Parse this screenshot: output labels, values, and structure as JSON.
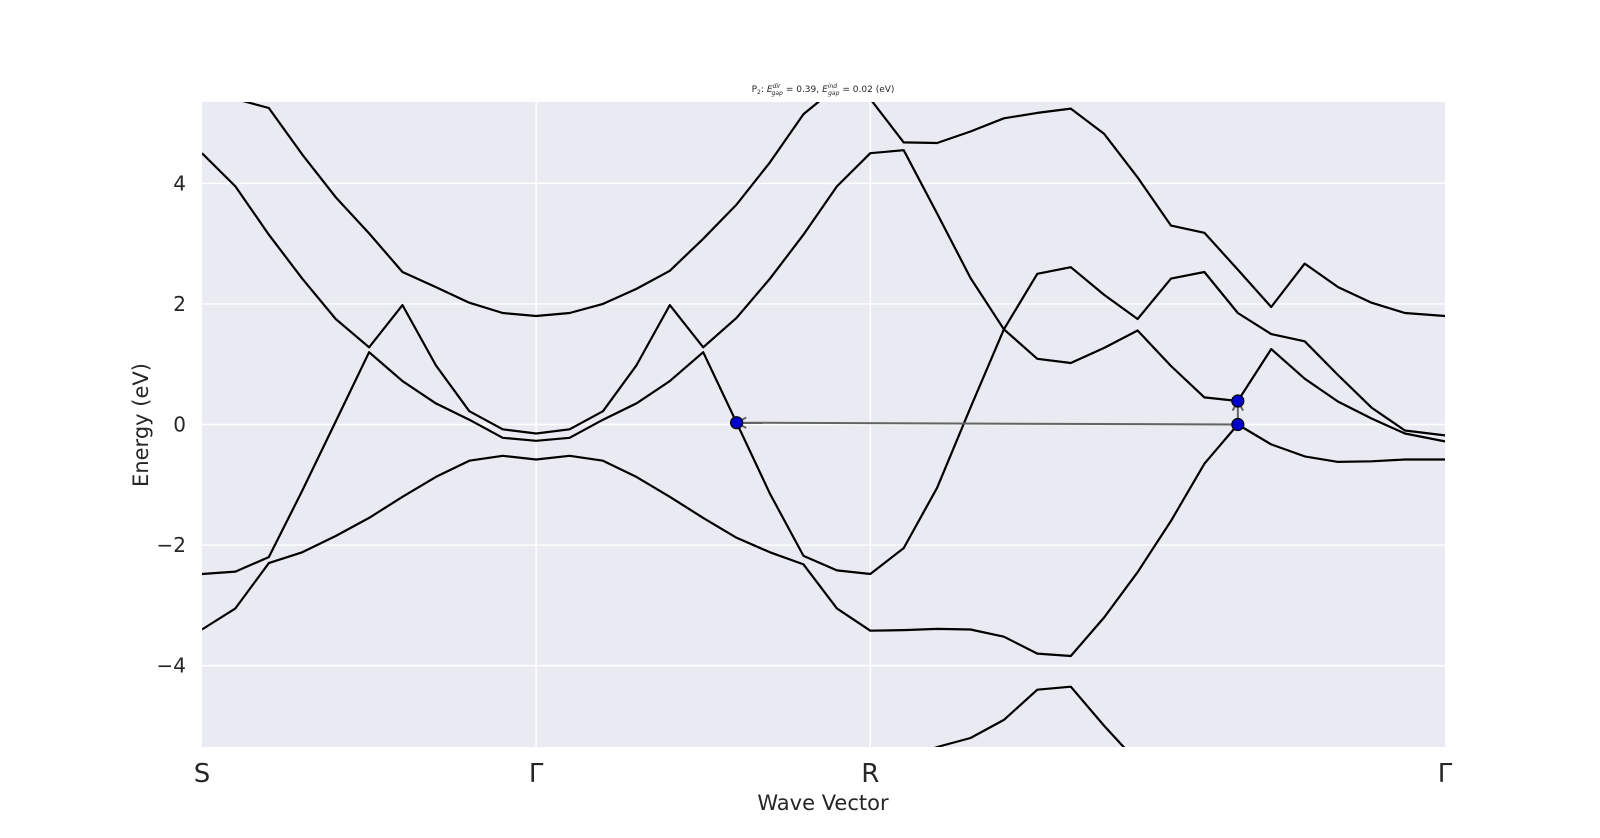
{
  "chart_data": {
    "type": "line",
    "title": "P$_2$: $E^{dir}_{gap}$ = 0.39, $E^{ind}_{gap}$ = 0.02 (eV)",
    "title_parts": {
      "prefix": "P",
      "prefix_sub": "2",
      "dir_label": "dir",
      "dir_sub": "gap",
      "dir_value": "= 0.39,",
      "ind_label": "ind",
      "ind_sub": "gap",
      "ind_value": "= 0.02 (eV)",
      "E": "E",
      "colon": ":"
    },
    "xlabel": "Wave Vector",
    "ylabel": "Energy (eV)",
    "ylim": [
      -5.35,
      5.35
    ],
    "xlim": [
      0,
      3.72
    ],
    "grid": true,
    "high_symmetry_points": [
      {
        "label": "S",
        "x": 0
      },
      {
        "label": "Γ",
        "x": 1.0
      },
      {
        "label": "R",
        "x": 2.0
      },
      {
        "label": "Γ",
        "x": 3.72
      }
    ],
    "yticks": [
      {
        "value": 4,
        "label": "4"
      },
      {
        "value": 2,
        "label": "2"
      },
      {
        "value": 0,
        "label": "0"
      },
      {
        "value": -2,
        "label": "−2"
      },
      {
        "value": -4,
        "label": "−4"
      }
    ],
    "series_color": "#000000",
    "x": [
      0.0,
      0.1,
      0.2,
      0.3,
      0.4,
      0.5,
      0.6,
      0.7,
      0.8,
      0.9,
      1.0,
      1.1,
      1.2,
      1.3,
      1.4,
      1.5,
      1.6,
      1.7,
      1.8,
      1.9,
      2.0,
      2.1,
      2.2,
      2.3,
      2.4,
      2.5,
      2.6,
      2.7,
      2.8,
      2.9,
      3.0,
      3.1,
      3.2,
      3.3,
      3.4,
      3.5,
      3.6,
      3.72
    ],
    "bands": [
      [
        -5.6,
        -5.6,
        -5.6,
        -5.6,
        -5.6,
        -5.6,
        -5.6,
        -5.6,
        -5.6,
        -5.6,
        -5.6,
        -5.6,
        -5.6,
        -5.6,
        -5.6,
        -5.6,
        -5.6,
        -5.6,
        -5.6,
        -5.6,
        -5.6,
        -5.6,
        -5.35,
        -5.2,
        -4.9,
        -4.4,
        -4.35,
        -5.0,
        -5.6,
        -5.6,
        -5.6,
        -5.6,
        -5.6,
        -5.6,
        -5.6,
        -5.6,
        -5.6,
        -5.6
      ],
      [
        -3.4,
        -3.05,
        -2.3,
        -2.12,
        -1.85,
        -1.55,
        -1.2,
        -0.87,
        -0.6,
        -0.52,
        -0.58,
        -0.52,
        -0.6,
        -0.87,
        -1.2,
        -1.55,
        -1.88,
        -2.12,
        -2.32,
        -3.05,
        -3.42,
        -3.41,
        -3.39,
        -3.4,
        -3.52,
        -3.8,
        -3.84,
        -3.2,
        -2.45,
        -1.6,
        -0.65,
        0.0,
        -0.33,
        -0.53,
        -0.62,
        -0.61,
        -0.58,
        -0.58
      ],
      [
        -2.48,
        -2.44,
        -2.2,
        -1.1,
        0.05,
        1.2,
        0.72,
        0.35,
        0.08,
        -0.22,
        -0.27,
        -0.22,
        0.08,
        0.35,
        0.72,
        1.2,
        0.03,
        -1.15,
        -2.18,
        -2.42,
        -2.48,
        -2.05,
        -1.05,
        0.28,
        1.58,
        2.5,
        2.61,
        2.15,
        1.75,
        2.42,
        2.53,
        1.85,
        1.5,
        1.38,
        0.82,
        0.28,
        -0.1,
        -0.18
      ],
      [
        4.5,
        3.95,
        3.15,
        2.42,
        1.75,
        1.28,
        1.98,
        0.98,
        0.22,
        -0.08,
        -0.15,
        -0.08,
        0.22,
        0.98,
        1.98,
        1.28,
        1.77,
        2.42,
        3.15,
        3.95,
        4.5,
        4.55,
        3.5,
        2.43,
        1.58,
        1.09,
        1.02,
        1.27,
        1.56,
        0.97,
        0.45,
        0.39,
        1.25,
        0.76,
        0.38,
        0.1,
        -0.15,
        -0.28
      ],
      [
        5.6,
        5.4,
        5.25,
        4.48,
        3.77,
        3.17,
        2.53,
        2.28,
        2.02,
        1.85,
        1.8,
        1.85,
        2.0,
        2.25,
        2.55,
        3.08,
        3.65,
        4.35,
        5.15,
        5.6,
        5.4,
        4.68,
        4.67,
        4.86,
        5.08,
        5.17,
        5.24,
        4.82,
        4.1,
        3.3,
        3.18,
        2.57,
        1.95,
        2.67,
        2.28,
        2.02,
        1.85,
        1.8
      ]
    ],
    "markers": [
      {
        "name": "vbm-left",
        "x": 1.6,
        "y": 0.03
      },
      {
        "name": "vbm-right",
        "x": 3.1,
        "y": 0.0
      },
      {
        "name": "cbm-right",
        "x": 3.1,
        "y": 0.39
      }
    ],
    "marker_color": "#0000cc",
    "arrows": [
      {
        "name": "indirect-gap-arrow",
        "from": [
          3.1,
          0.0
        ],
        "to": [
          1.6,
          0.03
        ]
      },
      {
        "name": "direct-gap-arrow",
        "from": [
          3.1,
          0.0
        ],
        "to": [
          3.1,
          0.39
        ]
      }
    ],
    "arrow_color": "#646464",
    "plot_background": "#eaeaf2"
  }
}
